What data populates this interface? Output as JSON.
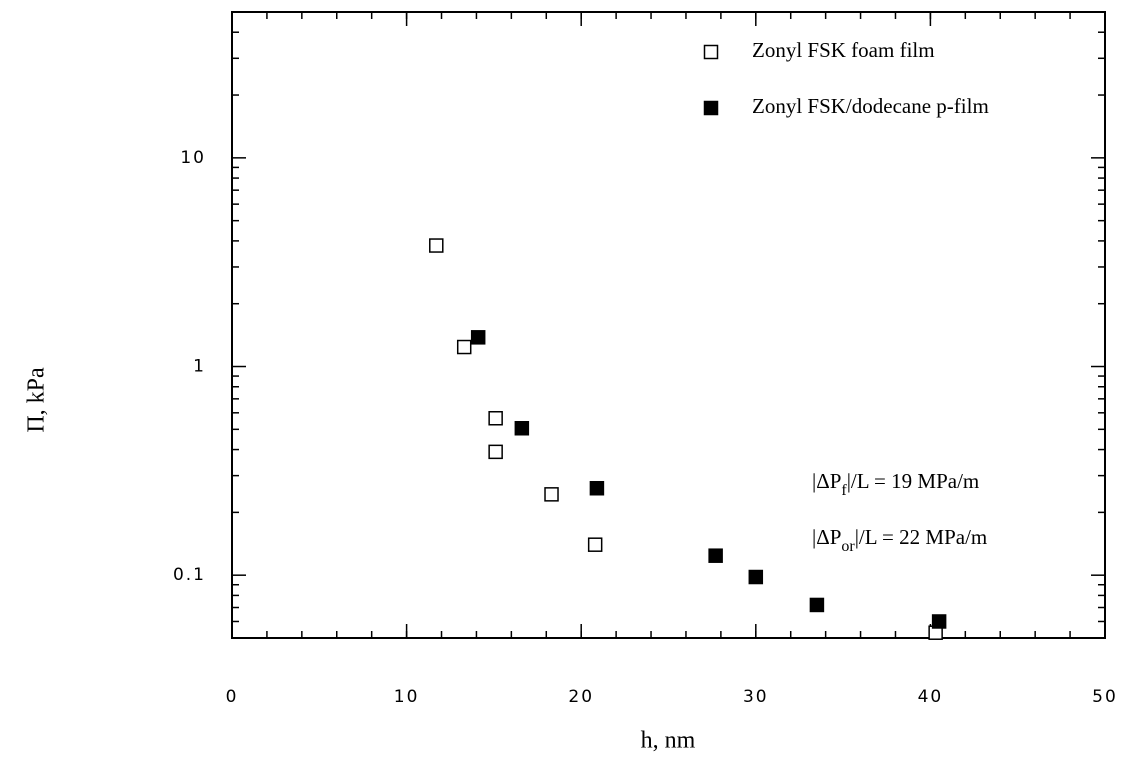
{
  "chart_data": {
    "type": "scatter",
    "xlabel": "h, nm",
    "ylabel": "Π, kPa",
    "xlim": [
      0,
      50
    ],
    "xticks": [
      0,
      10,
      20,
      30,
      40,
      50
    ],
    "ylim": [
      0.05,
      50
    ],
    "yticks": [
      0.1,
      1,
      10
    ],
    "ylog": true,
    "legend": "upper right",
    "series": [
      {
        "name": "Zonyl FSK foam film",
        "marker": "open-square",
        "color": "#000000",
        "x": [
          11.7,
          13.3,
          15.1,
          15.1,
          18.3,
          20.8,
          40.3
        ],
        "values": [
          3.8,
          1.24,
          0.565,
          0.39,
          0.244,
          0.14,
          0.053
        ]
      },
      {
        "name": "Zonyl FSK/dodecane p-film",
        "marker": "filled-square",
        "color": "#000000",
        "x": [
          14.1,
          16.6,
          20.9,
          27.7,
          30.0,
          33.5,
          40.5
        ],
        "values": [
          1.38,
          0.506,
          0.261,
          0.124,
          0.098,
          0.072,
          0.06
        ]
      }
    ],
    "annotations": [
      {
        "pre": "|ΔP",
        "sub": "f",
        "post": "|/L = 19 MPa/m"
      },
      {
        "pre": "|ΔP",
        "sub": "or",
        "post": "|/L = 22 MPa/m"
      }
    ]
  }
}
